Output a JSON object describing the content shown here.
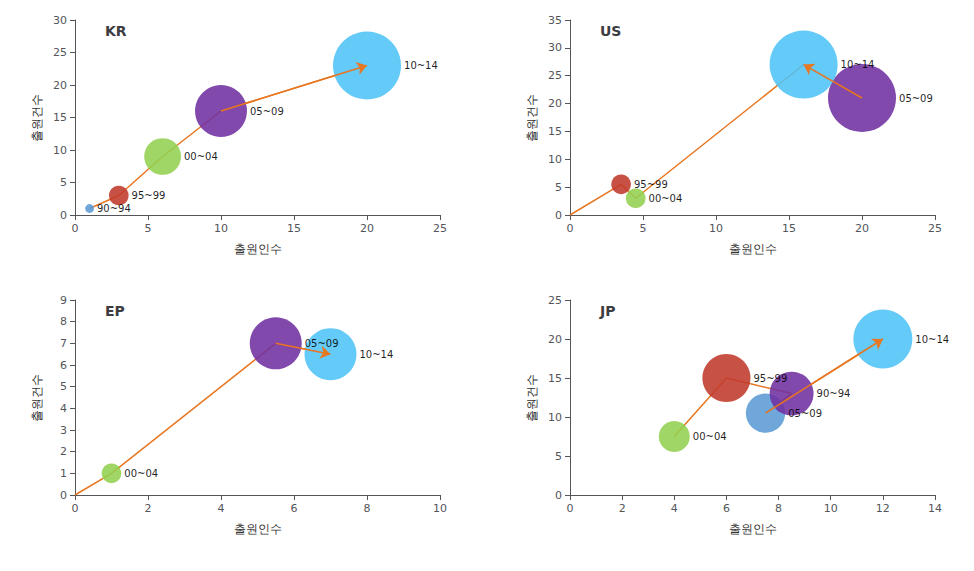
{
  "chart_data": [
    {
      "type": "scatter",
      "title": "KR",
      "xlabel": "출원인수",
      "ylabel": "출원건수",
      "xlim": [
        0,
        25
      ],
      "ylim": [
        0,
        30
      ],
      "xticks": [
        0,
        5,
        10,
        15,
        20,
        25
      ],
      "yticks": [
        0,
        5,
        10,
        15,
        20,
        25,
        30
      ],
      "grid": false,
      "labels": [
        "90~94",
        "95~99",
        "00~04",
        "05~09",
        "10~14"
      ],
      "x": [
        1,
        3,
        6,
        10,
        20
      ],
      "values": [
        1,
        3,
        9,
        16,
        23
      ],
      "sizes": [
        40,
        200,
        700,
        1400,
        2400
      ],
      "colors": [
        "#5B9BD5",
        "#C0392B",
        "#92D050",
        "#7030A0",
        "#4FC3F7"
      ],
      "line": {
        "type": "line",
        "x": [
          1,
          3,
          6,
          10,
          20
        ],
        "values": [
          1,
          3,
          9,
          16,
          23
        ],
        "color": "#E87722"
      },
      "arrow": {
        "from": [
          10,
          16
        ],
        "to": [
          20,
          23
        ],
        "color": "#E87722"
      }
    },
    {
      "type": "scatter",
      "title": "US",
      "xlabel": "출원인수",
      "ylabel": "출원건수",
      "xlim": [
        0,
        25
      ],
      "ylim": [
        0,
        35
      ],
      "xticks": [
        0,
        5,
        10,
        15,
        20,
        25
      ],
      "yticks": [
        0,
        5,
        10,
        15,
        20,
        25,
        30,
        35
      ],
      "grid": false,
      "labels": [
        "95~99",
        "00~04",
        "05~09",
        "10~14"
      ],
      "x": [
        3.5,
        4.5,
        20,
        16
      ],
      "values": [
        5.5,
        3.0,
        21,
        27
      ],
      "sizes": [
        200,
        200,
        2400,
        2400
      ],
      "colors": [
        "#C0392B",
        "#92D050",
        "#7030A0",
        "#4FC3F7"
      ],
      "line": {
        "type": "line",
        "x": [
          0,
          3.5,
          4.5,
          16,
          20
        ],
        "values": [
          0,
          5.5,
          3.0,
          27,
          21
        ],
        "color": "#E87722"
      },
      "arrow": {
        "from": [
          20,
          21
        ],
        "to": [
          16,
          27
        ],
        "color": "#E87722"
      }
    },
    {
      "type": "scatter",
      "title": "EP",
      "xlabel": "출원인수",
      "ylabel": "출원건수",
      "xlim": [
        0,
        10
      ],
      "ylim": [
        0,
        9
      ],
      "xticks": [
        0,
        2,
        4,
        6,
        8,
        10
      ],
      "yticks": [
        0,
        1,
        2,
        3,
        4,
        5,
        6,
        7,
        8,
        9
      ],
      "grid": false,
      "labels": [
        "00~04",
        "05~09",
        "10~14"
      ],
      "x": [
        1.0,
        5.5,
        7.0
      ],
      "values": [
        1.0,
        7.0,
        6.5
      ],
      "sizes": [
        200,
        1400,
        1400
      ],
      "colors": [
        "#92D050",
        "#7030A0",
        "#4FC3F7"
      ],
      "line": {
        "type": "line",
        "x": [
          0,
          1,
          5.5,
          7.0
        ],
        "values": [
          0,
          1,
          7.0,
          6.5
        ],
        "color": "#E87722"
      },
      "arrow": {
        "from": [
          5.5,
          7.0
        ],
        "to": [
          7.0,
          6.5
        ],
        "color": "#E87722"
      }
    },
    {
      "type": "scatter",
      "title": "JP",
      "xlabel": "출원인수",
      "ylabel": "출원건수",
      "xlim": [
        0,
        14
      ],
      "ylim": [
        0,
        25
      ],
      "xticks": [
        0,
        2,
        4,
        6,
        8,
        10,
        12,
        14
      ],
      "yticks": [
        0,
        5,
        10,
        15,
        20,
        25
      ],
      "grid": false,
      "labels": [
        "00~04",
        "05~09",
        "90~94",
        "95~99",
        "10~14"
      ],
      "x": [
        4.0,
        7.5,
        8.5,
        6.0,
        12.0
      ],
      "values": [
        7.5,
        10.5,
        13.0,
        15.0,
        20.0
      ],
      "sizes": [
        500,
        800,
        1000,
        1200,
        1800
      ],
      "colors": [
        "#92D050",
        "#5B9BD5",
        "#7030A0",
        "#C0392B",
        "#4FC3F7"
      ],
      "line": {
        "type": "line",
        "x": [
          4.0,
          6.0,
          8.5,
          7.5,
          12.0
        ],
        "values": [
          7.5,
          15.0,
          13.0,
          10.5,
          20.0
        ],
        "color": "#E87722"
      },
      "arrow": {
        "from": [
          7.5,
          10.5
        ],
        "to": [
          12.0,
          20.0
        ],
        "color": "#E87722"
      }
    }
  ]
}
